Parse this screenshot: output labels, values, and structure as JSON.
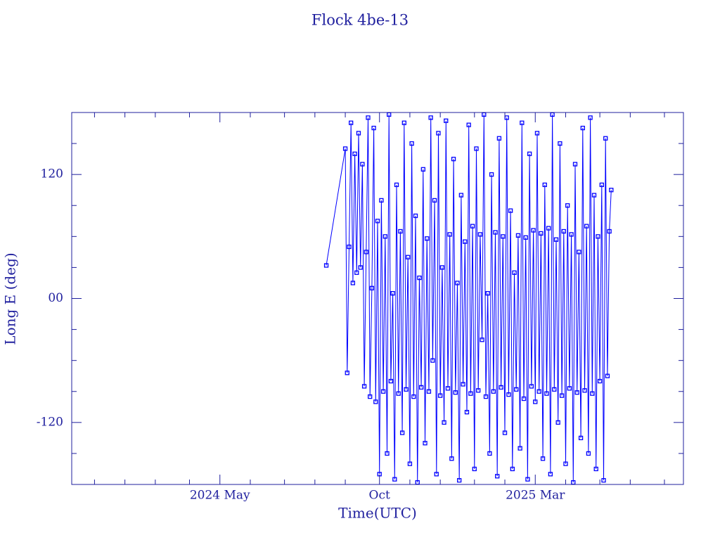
{
  "chart_data": {
    "type": "line",
    "title": "Flock 4be-13",
    "xlabel": "Time(UTC)",
    "ylabel": "Long E (deg)",
    "xlim": [
      2023.94,
      2025.55
    ],
    "xticks": [
      {
        "value": 2024.33,
        "label": "2024 May"
      },
      {
        "value": 2024.75,
        "label": "Oct"
      },
      {
        "value": 2025.16,
        "label": "2025 Mar"
      }
    ],
    "xminorticks": [
      2024.0,
      2024.08,
      2024.16,
      2024.25,
      2024.41,
      2024.5,
      2024.58,
      2024.66,
      2024.83,
      2024.91,
      2025.0,
      2025.08,
      2025.24,
      2025.33,
      2025.41,
      2025.5
    ],
    "ylim": [
      -180,
      180
    ],
    "yticks": [
      -120,
      {
        "value": 0,
        "label": "00"
      },
      120
    ],
    "yminorticks": [
      -150,
      -90,
      -60,
      -30,
      30,
      60,
      90,
      150
    ],
    "frame_color": "#1f1f9e",
    "marker": "square",
    "series": [
      {
        "color": "#0000ff",
        "x": [
          2024.61,
          2024.66,
          2024.665,
          2024.67,
          2024.675,
          2024.68,
          2024.685,
          2024.69,
          2024.695,
          2024.7,
          2024.705,
          2024.71,
          2024.715,
          2024.72,
          2024.725,
          2024.73,
          2024.735,
          2024.74,
          2024.745,
          2024.75,
          2024.755,
          2024.76,
          2024.765,
          2024.77,
          2024.775,
          2024.78,
          2024.785,
          2024.79,
          2024.795,
          2024.8,
          2024.805,
          2024.81,
          2024.815,
          2024.82,
          2024.825,
          2024.83,
          2024.835,
          2024.84,
          2024.845,
          2024.85,
          2024.855,
          2024.86,
          2024.865,
          2024.87,
          2024.875,
          2024.88,
          2024.885,
          2024.89,
          2024.895,
          2024.9,
          2024.905,
          2024.91,
          2024.915,
          2024.92,
          2024.925,
          2024.93,
          2024.935,
          2024.94,
          2024.945,
          2024.95,
          2024.955,
          2024.96,
          2024.965,
          2024.97,
          2024.975,
          2024.98,
          2024.985,
          2024.99,
          2024.995,
          2025.0,
          2025.005,
          2025.01,
          2025.015,
          2025.02,
          2025.025,
          2025.03,
          2025.035,
          2025.04,
          2025.045,
          2025.05,
          2025.055,
          2025.06,
          2025.065,
          2025.07,
          2025.075,
          2025.08,
          2025.085,
          2025.09,
          2025.095,
          2025.1,
          2025.105,
          2025.11,
          2025.115,
          2025.12,
          2025.125,
          2025.13,
          2025.135,
          2025.14,
          2025.145,
          2025.15,
          2025.155,
          2025.16,
          2025.165,
          2025.17,
          2025.175,
          2025.18,
          2025.185,
          2025.19,
          2025.195,
          2025.2,
          2025.205,
          2025.21,
          2025.215,
          2025.22,
          2025.225,
          2025.23,
          2025.235,
          2025.24,
          2025.245,
          2025.25,
          2025.255,
          2025.26,
          2025.265,
          2025.27,
          2025.275,
          2025.28,
          2025.285,
          2025.29,
          2025.295,
          2025.3,
          2025.305,
          2025.31,
          2025.315,
          2025.32,
          2025.325,
          2025.33,
          2025.335,
          2025.34,
          2025.345,
          2025.35,
          2025.355,
          2025.36
        ],
        "values": [
          32,
          145,
          -72,
          50,
          170,
          15,
          140,
          25,
          160,
          30,
          130,
          -85,
          45,
          175,
          -95,
          10,
          165,
          -100,
          75,
          -170,
          95,
          -90,
          60,
          -150,
          178,
          -80,
          5,
          -175,
          110,
          -92,
          65,
          -130,
          170,
          -88,
          40,
          -160,
          150,
          -95,
          80,
          -178,
          20,
          -86,
          125,
          -140,
          58,
          -90,
          175,
          -60,
          95,
          -170,
          160,
          -94,
          30,
          -120,
          172,
          -87,
          62,
          -155,
          135,
          -91,
          15,
          -176,
          100,
          -83,
          55,
          -110,
          168,
          -92,
          70,
          -165,
          145,
          -89,
          62,
          -40,
          178,
          -95,
          5,
          -150,
          120,
          -90,
          64,
          -172,
          155,
          -86,
          60,
          -130,
          175,
          -93,
          85,
          -165,
          25,
          -88,
          61,
          -145,
          170,
          -97,
          59,
          -175,
          140,
          -85,
          66,
          -100,
          160,
          -90,
          63,
          -155,
          110,
          -92,
          68,
          -170,
          178,
          -88,
          57,
          -120,
          150,
          -94,
          65,
          -160,
          90,
          -87,
          62,
          -178,
          130,
          -91,
          45,
          -135,
          165,
          -89,
          70,
          -150,
          175,
          -92,
          100,
          -165,
          60,
          -80,
          110,
          -176,
          155,
          -75,
          65,
          105
        ]
      }
    ]
  }
}
